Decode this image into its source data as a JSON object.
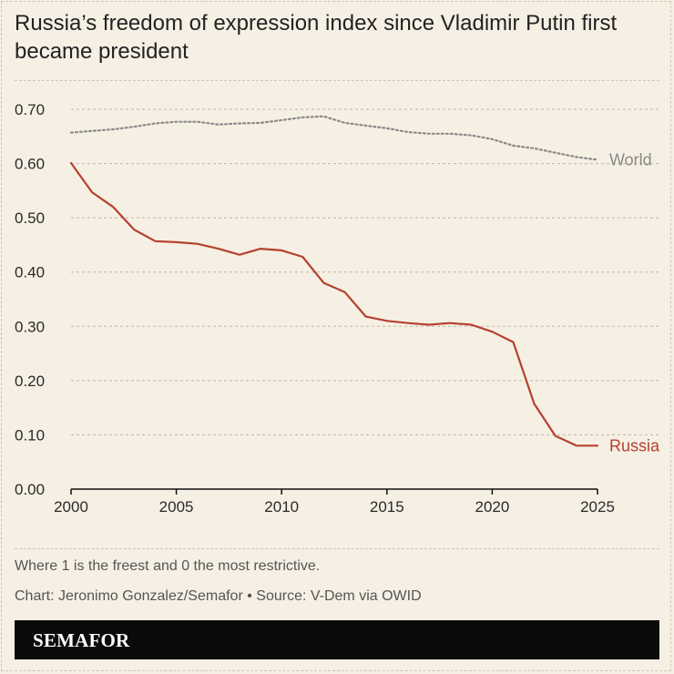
{
  "title": "Russia’s freedom of expression index since Vladimir Putin first became president",
  "note": "Where 1 is the freest and 0 the most restrictive.",
  "credit": "Chart: Jeronimo Gonzalez/Semafor • Source: V-Dem via OWID",
  "brand": "SEMAFOR",
  "colors": {
    "background": "#f6f0e4",
    "russia": "#b5412f",
    "world": "#8a8a8a",
    "grid": "#bdb6a8"
  },
  "chart_data": {
    "type": "line",
    "title": "Russia’s freedom of expression index since Vladimir Putin first became president",
    "xlabel": "",
    "ylabel": "",
    "xlim": [
      2000,
      2025
    ],
    "ylim": [
      0,
      0.7
    ],
    "x_ticks": [
      "2000",
      "2005",
      "2010",
      "2015",
      "2020",
      "2025"
    ],
    "y_ticks": [
      "0.00",
      "0.10",
      "0.20",
      "0.30",
      "0.40",
      "0.50",
      "0.60",
      "0.70"
    ],
    "grid": true,
    "legend": "direct-labels-right",
    "x": [
      2000,
      2001,
      2002,
      2003,
      2004,
      2005,
      2006,
      2007,
      2008,
      2009,
      2010,
      2011,
      2012,
      2013,
      2014,
      2015,
      2016,
      2017,
      2018,
      2019,
      2020,
      2021,
      2022,
      2023,
      2024,
      2025
    ],
    "series": [
      {
        "name": "World",
        "style": "dotted",
        "values": [
          0.657,
          0.66,
          0.663,
          0.668,
          0.674,
          0.677,
          0.677,
          0.672,
          0.674,
          0.675,
          0.68,
          0.685,
          0.687,
          0.675,
          0.67,
          0.665,
          0.658,
          0.655,
          0.655,
          0.652,
          0.645,
          0.633,
          0.628,
          0.62,
          0.612,
          0.607
        ]
      },
      {
        "name": "Russia",
        "style": "solid",
        "values": [
          0.601,
          0.547,
          0.52,
          0.478,
          0.457,
          0.455,
          0.452,
          0.443,
          0.432,
          0.443,
          0.44,
          0.428,
          0.38,
          0.363,
          0.318,
          0.31,
          0.306,
          0.303,
          0.306,
          0.303,
          0.29,
          0.271,
          0.157,
          0.098,
          0.08,
          0.08
        ]
      }
    ]
  }
}
